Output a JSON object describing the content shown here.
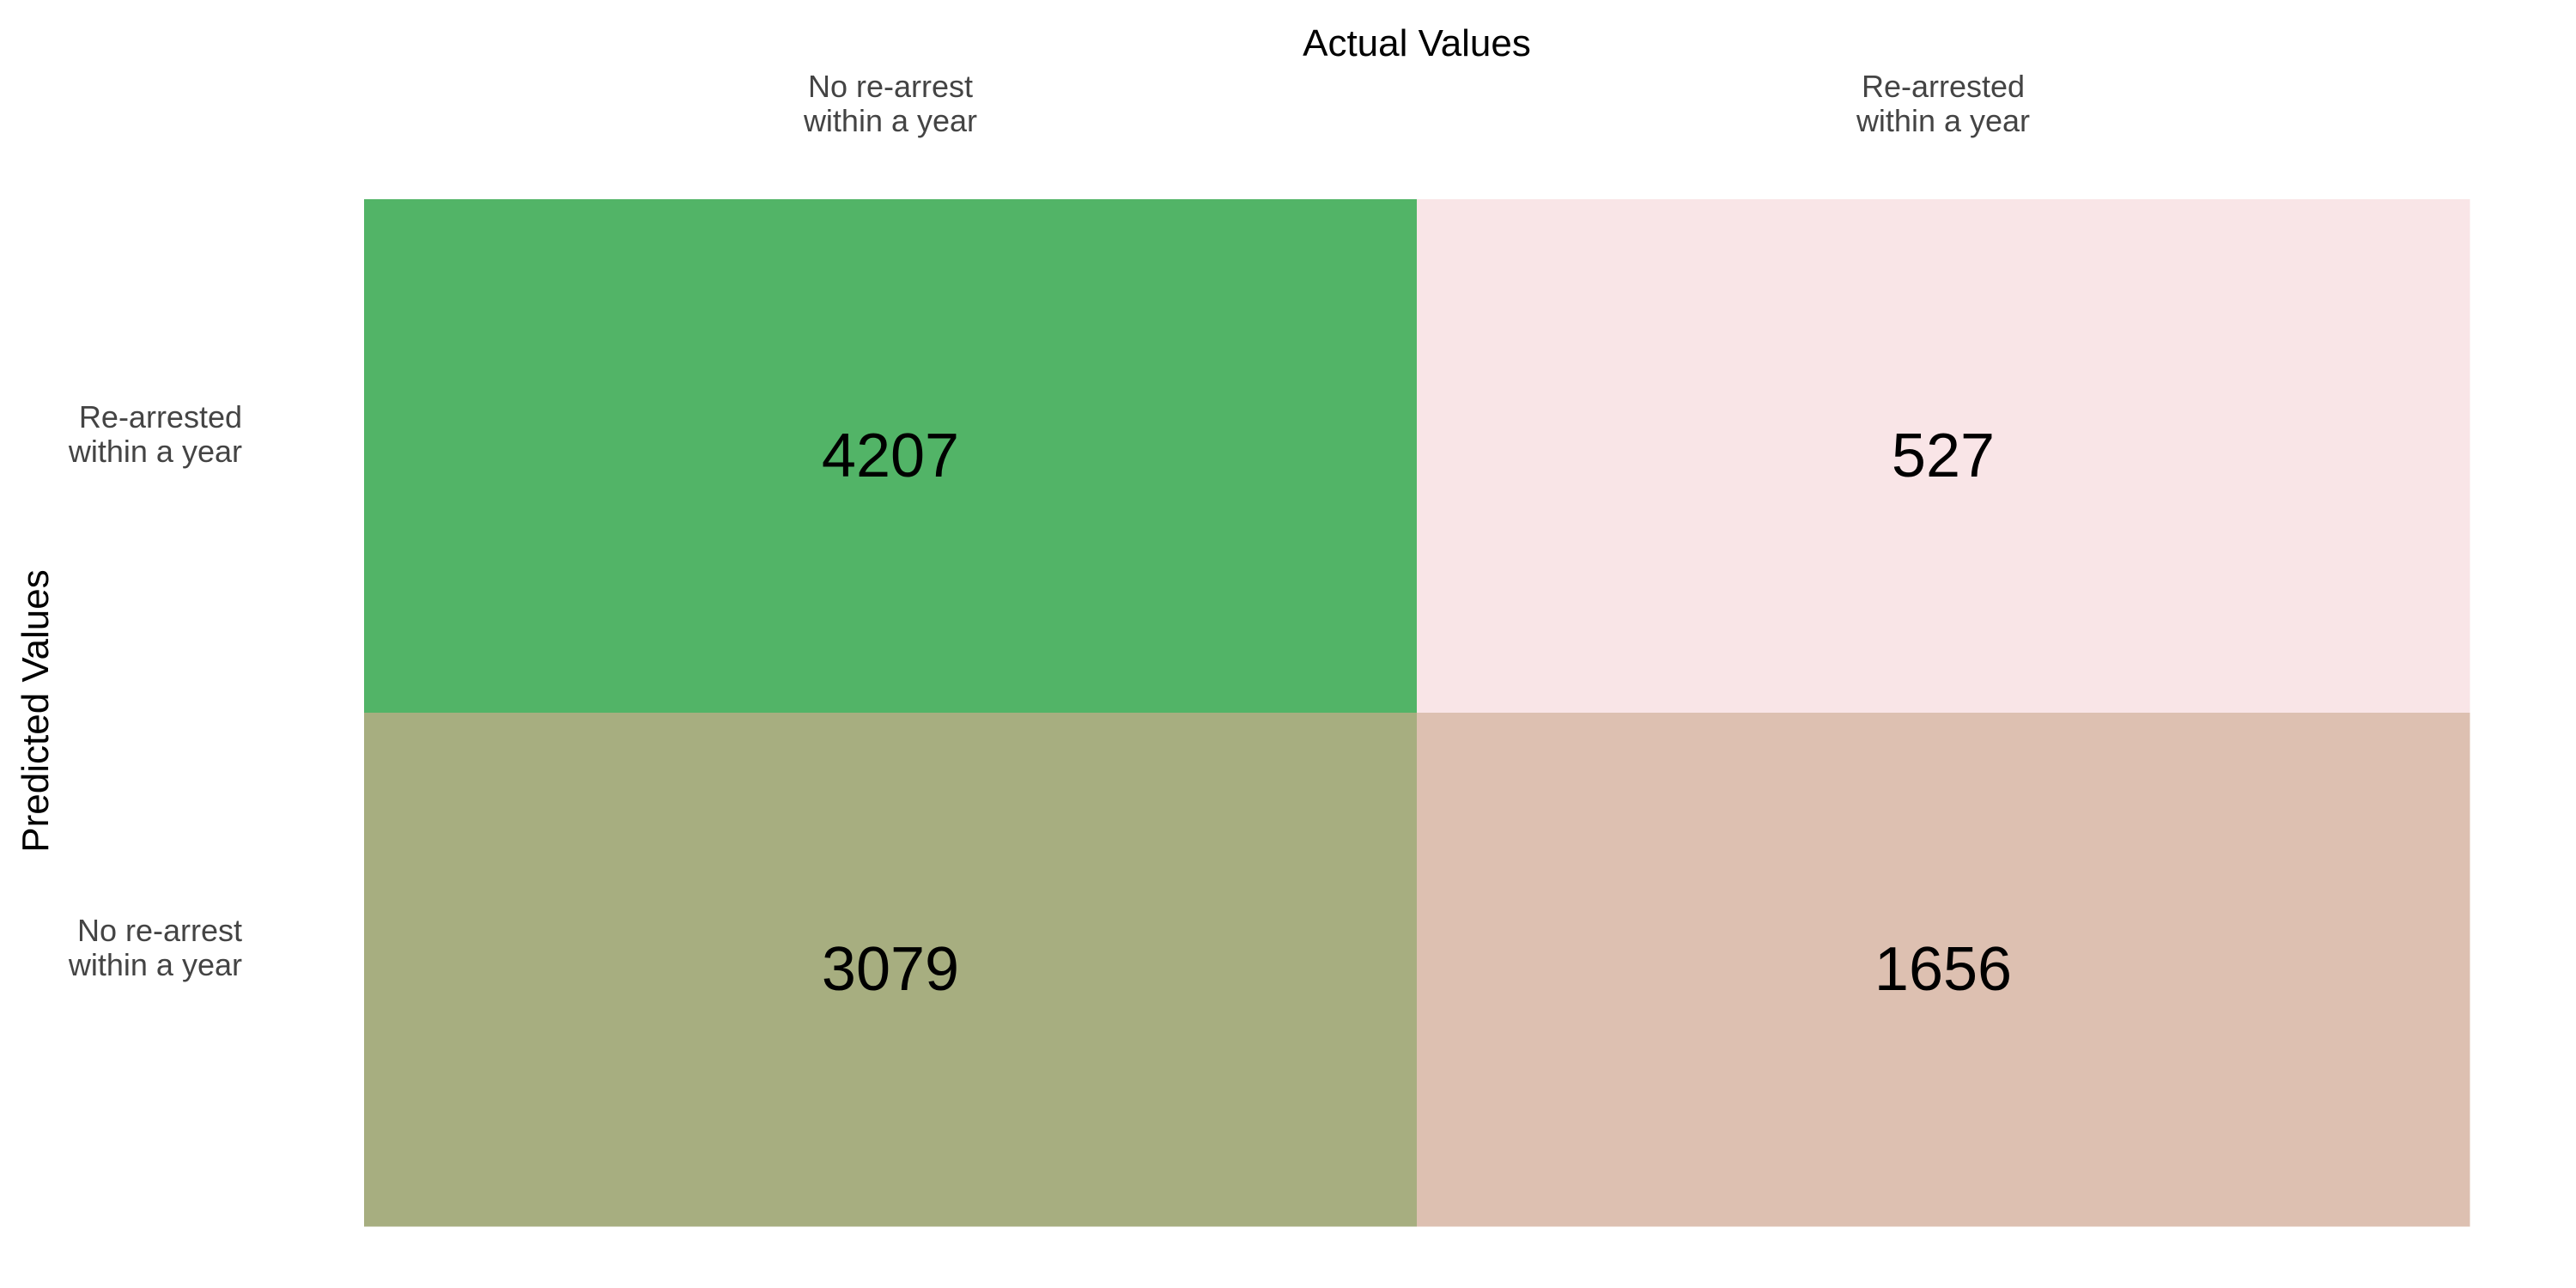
{
  "chart_data": {
    "type": "heatmap",
    "title": "",
    "xlabel": "Actual Values",
    "ylabel": "Predicted Values",
    "x_position": "top",
    "x_categories": [
      [
        "No re-arrest",
        "within a year"
      ],
      [
        "Re-arrested",
        "within a year"
      ]
    ],
    "y_categories": [
      [
        "Re-arrested",
        "within a year"
      ],
      [
        "No re-arrest",
        "within a year"
      ]
    ],
    "values": [
      [
        4207,
        527
      ],
      [
        3079,
        1656
      ]
    ],
    "cell_colors": [
      [
        "#52b467",
        "#f9e5e7"
      ],
      [
        "#a7ae80",
        "#ddc0b1"
      ]
    ],
    "colorbar": false,
    "grid": false
  }
}
